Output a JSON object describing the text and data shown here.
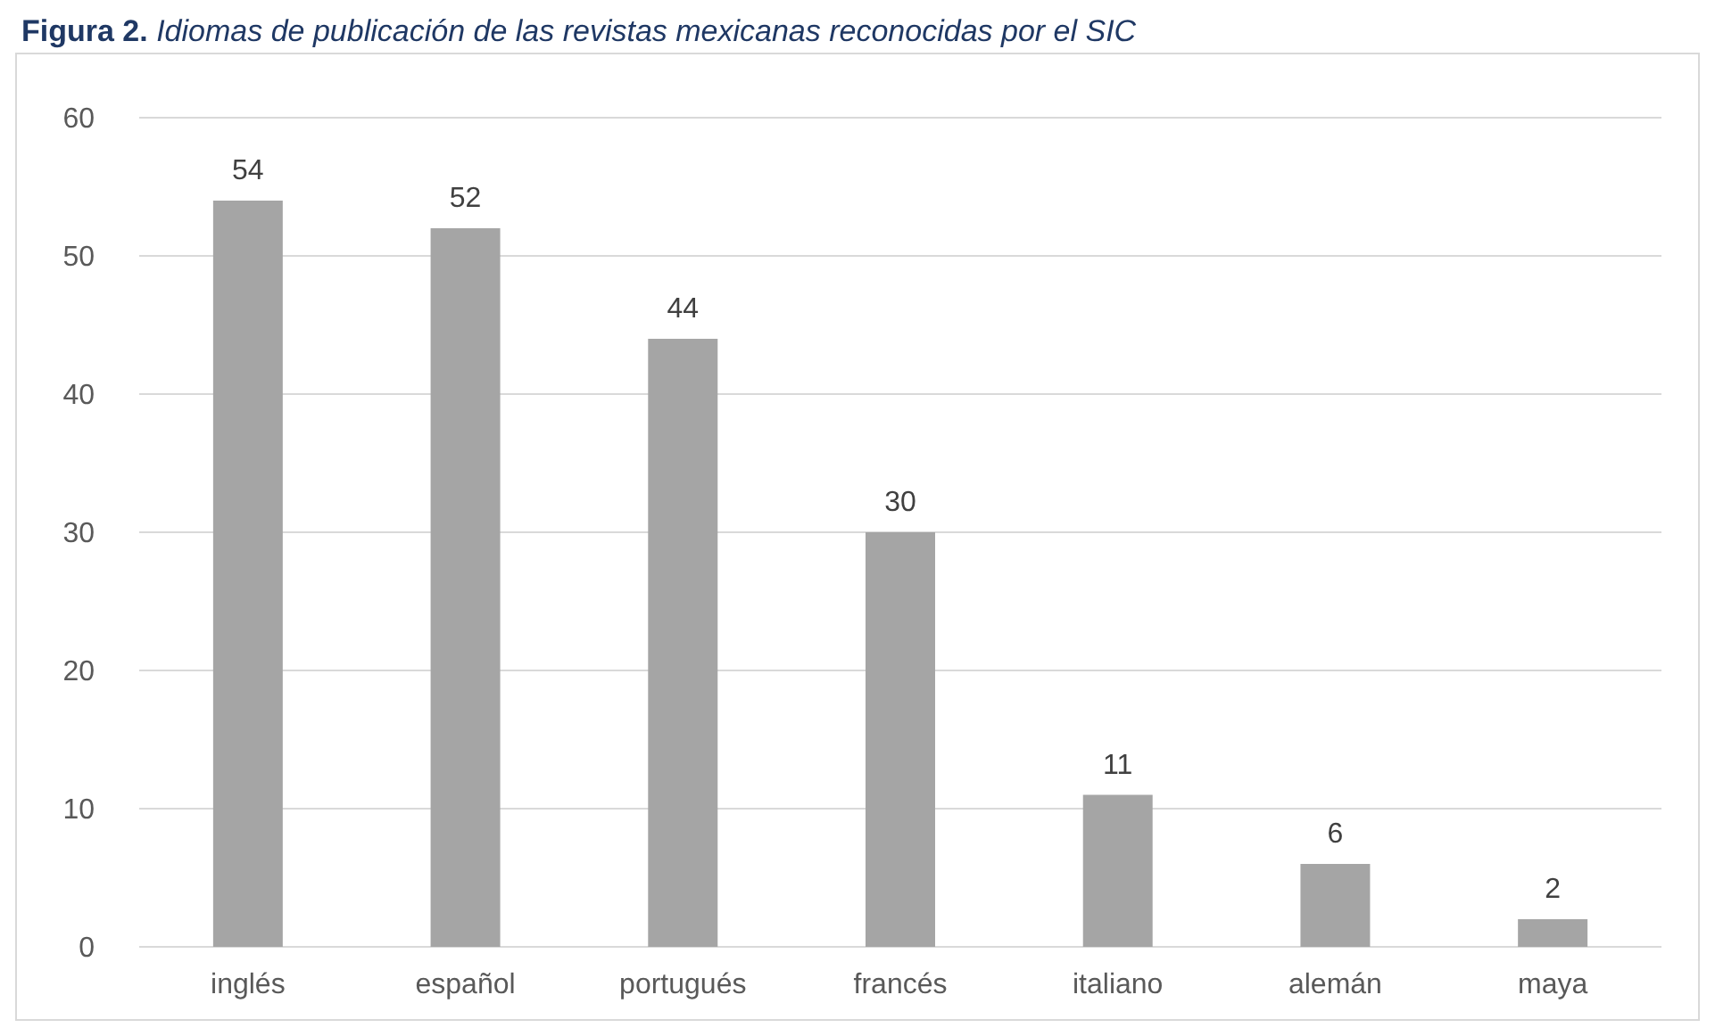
{
  "chart_data": {
    "type": "bar",
    "title": "Figura 2. Idiomas de publicación de las revistas mexicanas reconocidas por el SIC",
    "categories": [
      "inglés",
      "español",
      "portugués",
      "francés",
      "italiano",
      "alemán",
      "maya"
    ],
    "values": [
      54,
      52,
      44,
      30,
      11,
      6,
      2
    ],
    "color": "#a5a5a5",
    "ylim": [
      0,
      60
    ],
    "yticks": [
      0,
      10,
      20,
      30,
      40,
      50,
      60
    ],
    "grid": "y",
    "data_labels": true
  }
}
